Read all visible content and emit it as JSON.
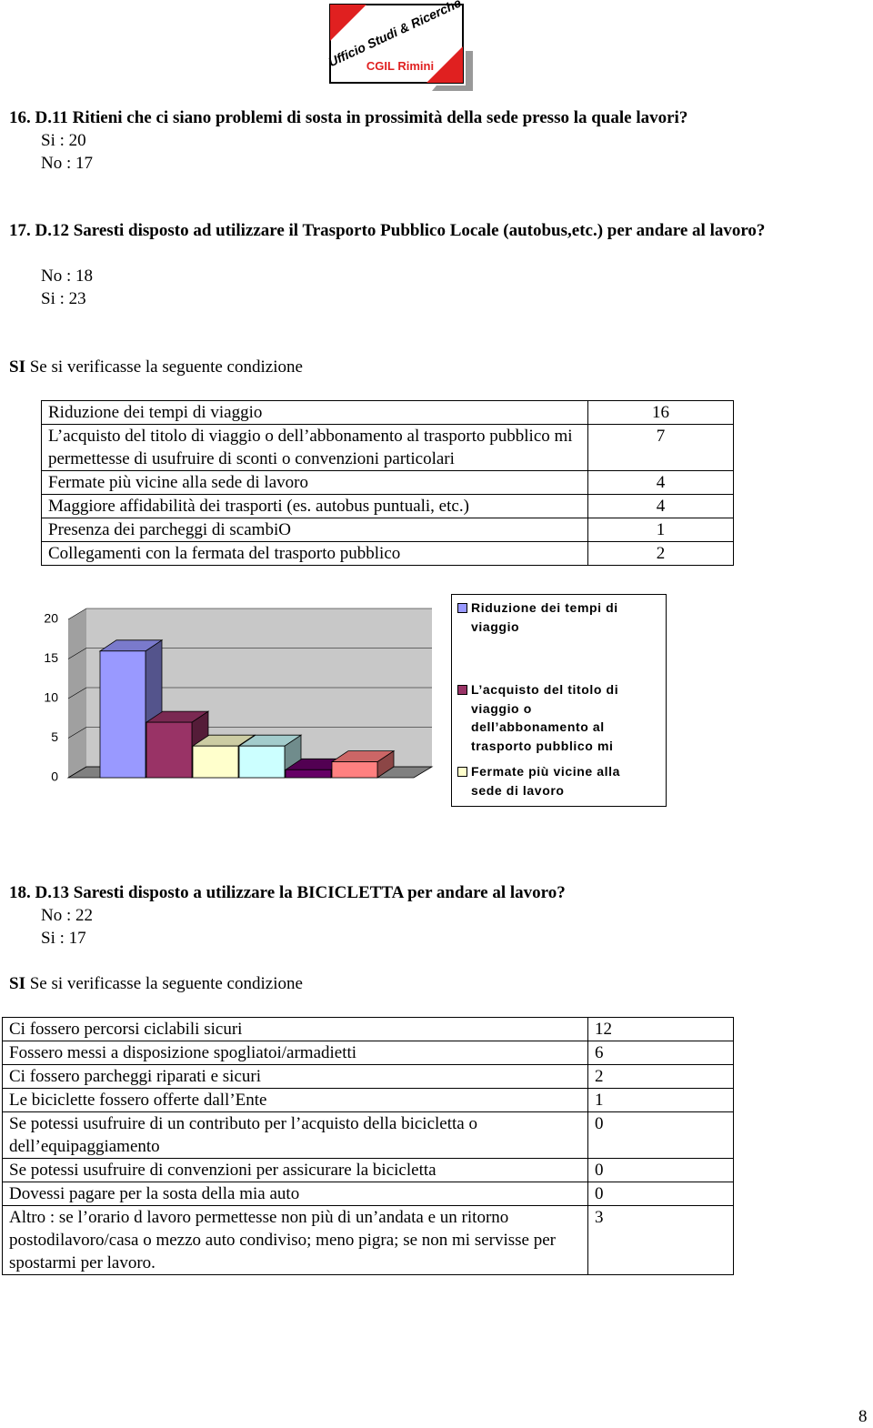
{
  "logo": {
    "line1": "Ufficio Studi & Ricerche",
    "line2": "CGIL Rimini"
  },
  "sections": [
    {
      "heading": "16. D.11 Ritieni che ci siano problemi di sosta in prossimità della sede presso la quale lavori?",
      "answers": [
        "Si   : 20",
        "No : 17"
      ]
    },
    {
      "heading": "17. D.12 Saresti disposto ad utilizzare il Trasporto Pubblico Locale (autobus,etc.) per andare al lavoro?",
      "answers": [
        "No : 18",
        "Si   : 23"
      ],
      "condition": {
        "lead": "SI",
        "text": "Se si verificasse la seguente condizione"
      },
      "table": {
        "rows": [
          [
            "Riduzione dei tempi di viaggio",
            "16"
          ],
          [
            "L’acquisto del titolo di viaggio o dell’abbonamento al trasporto pubblico mi permettesse di usufruire di sconti o convenzioni particolari",
            "7"
          ],
          [
            "Fermate più vicine alla sede di lavoro",
            "4"
          ],
          [
            "Maggiore affidabilità dei trasporti (es. autobus puntuali, etc.)",
            "4"
          ],
          [
            "Presenza dei parcheggi di scambiO",
            "1"
          ],
          [
            "Collegamenti con la fermata del trasporto pubblico",
            "2"
          ]
        ]
      },
      "chart": {
        "type": "bar",
        "values": [
          16,
          7,
          4,
          4,
          1,
          2
        ],
        "colors": [
          "#9999ff",
          "#993366",
          "#ffffcc",
          "#ccffff",
          "#660066",
          "#ff8080"
        ],
        "ylim": [
          0,
          20
        ],
        "yticks": [
          0,
          5,
          10,
          15,
          20
        ],
        "grid": true,
        "legend": [
          "Riduzione dei tempi di viaggio",
          "L’acquisto del titolo di viaggio o dell’abbonamento al trasporto pubblico mi",
          "Fermate più vicine alla sede di lavoro"
        ]
      }
    },
    {
      "heading": "18. D.13 Saresti disposto a utilizzare la BICICLETTA per andare al lavoro?",
      "answers": [
        "No : 22",
        "Si   : 17"
      ],
      "condition": {
        "lead": "SI",
        "text": "Se si verificasse la seguente condizione"
      },
      "table": {
        "rows": [
          [
            "Ci fossero percorsi ciclabili sicuri",
            "12"
          ],
          [
            "Fossero messi a disposizione spogliatoi/armadietti",
            "6"
          ],
          [
            "Ci fossero parcheggi riparati e sicuri",
            "2"
          ],
          [
            "Le biciclette fossero offerte dall’Ente",
            "1"
          ],
          [
            "Se potessi usufruire di un contributo per l’acquisto della bicicletta o dell’equipaggiamento",
            "0"
          ],
          [
            "Se potessi usufruire di convenzioni per assicurare la bicicletta",
            "0"
          ],
          [
            "Dovessi pagare per la sosta della mia auto",
            "0"
          ],
          [
            "Altro : se l’orario d lavoro permettesse non più di un’andata e un ritorno postodilavoro/casa o mezzo auto condiviso; meno pigra; se non mi servisse per spostarmi per lavoro.",
            "3"
          ]
        ]
      }
    }
  ],
  "page_number": "8"
}
